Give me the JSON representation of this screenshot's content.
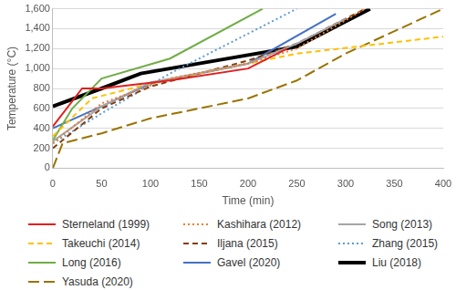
{
  "chart_data": {
    "type": "line",
    "x_label": "Time (min)",
    "y_label": "Temperature (°C)",
    "xlim": [
      0,
      400
    ],
    "xticks": [
      0,
      50,
      100,
      150,
      200,
      250,
      300,
      350,
      400
    ],
    "ylim": [
      0,
      1600
    ],
    "yticks": [
      0,
      200,
      400,
      600,
      800,
      1000,
      1200,
      1400,
      1600
    ],
    "grid": true,
    "legend": "bottom",
    "series": [
      {
        "name": "Sterneland (1999)",
        "color": "#e02020",
        "line_style": "solid",
        "x": [
          0,
          30,
          50,
          120,
          200,
          240
        ],
        "values": [
          420,
          800,
          800,
          880,
          1000,
          1200
        ]
      },
      {
        "name": "Kashihara (2012)",
        "color": "#ed7d31",
        "line_style": "dotted",
        "x": [
          0,
          50,
          120,
          200,
          250,
          320
        ],
        "values": [
          250,
          650,
          900,
          1050,
          1200,
          1600
        ]
      },
      {
        "name": "Song (2013)",
        "color": "#a5a5a5",
        "line_style": "solid",
        "x": [
          0,
          50,
          100,
          200,
          250,
          300
        ],
        "values": [
          270,
          620,
          860,
          1050,
          1250,
          1500
        ]
      },
      {
        "name": "Takeuchi (2014)",
        "color": "#ffc000",
        "line_style": "dashed",
        "x": [
          0,
          40,
          100,
          250,
          400
        ],
        "values": [
          320,
          700,
          850,
          1150,
          1320
        ]
      },
      {
        "name": "Iljana (2015)",
        "color": "#843c0c",
        "line_style": "dashed",
        "x": [
          0,
          10,
          50,
          100,
          200,
          250,
          320
        ],
        "values": [
          200,
          280,
          600,
          820,
          1080,
          1250,
          1600
        ]
      },
      {
        "name": "Zhang (2015)",
        "color": "#5b9bd5",
        "line_style": "dotted",
        "x": [
          0,
          50,
          120,
          250
        ],
        "values": [
          250,
          550,
          950,
          1600
        ]
      },
      {
        "name": "Long (2016)",
        "color": "#70ad47",
        "line_style": "solid",
        "x": [
          0,
          20,
          50,
          120,
          215
        ],
        "values": [
          280,
          600,
          900,
          1100,
          1600
        ]
      },
      {
        "name": "Gavel (2020)",
        "color": "#4472c4",
        "line_style": "solid",
        "x": [
          0,
          50,
          100,
          200,
          290
        ],
        "values": [
          400,
          620,
          850,
          1050,
          1550
        ]
      },
      {
        "name": "Liu (2018)",
        "color": "#000000",
        "line_style": "thick",
        "x": [
          0,
          50,
          90,
          120,
          250,
          325
        ],
        "values": [
          620,
          800,
          950,
          1000,
          1220,
          1600
        ]
      },
      {
        "name": "Yasuda (2020)",
        "color": "#997300",
        "line_style": "longdash",
        "x": [
          0,
          10,
          50,
          100,
          200,
          250,
          300,
          400
        ],
        "values": [
          0,
          250,
          350,
          500,
          700,
          880,
          1150,
          1600
        ]
      }
    ]
  }
}
